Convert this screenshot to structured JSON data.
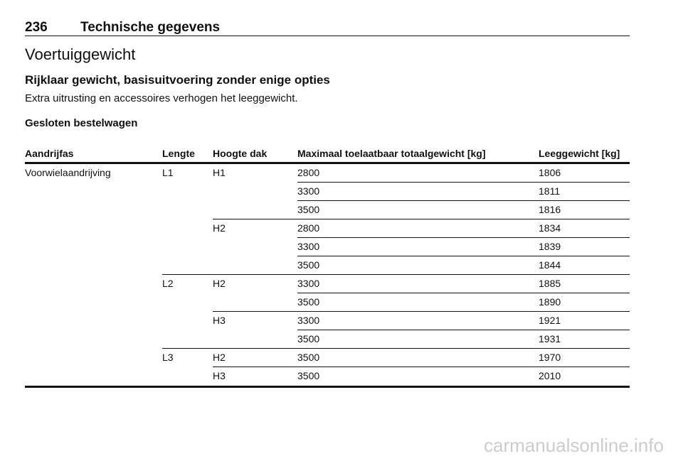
{
  "header": {
    "page_number": "236",
    "section": "Technische gegevens"
  },
  "title": "Voertuiggewicht",
  "subtitle": "Rijklaar gewicht, basisuitvoering zonder enige opties",
  "note": "Extra uitrusting en accessoires verhogen het leeggewicht.",
  "table_title": "Gesloten bestelwagen",
  "table": {
    "header": [
      "Aandrijfas",
      "Lengte",
      "Hoogte dak",
      "Maximaal toelaatbaar totaalgewicht [kg]",
      "Leeggewicht [kg]"
    ],
    "drive": "Voorwielaandrijving",
    "lengths": [
      {
        "length": "L1",
        "heights": [
          {
            "height": "H1",
            "rows": [
              [
                "2800",
                "1806"
              ],
              [
                "3300",
                "1811"
              ],
              [
                "3500",
                "1816"
              ]
            ]
          },
          {
            "height": "H2",
            "rows": [
              [
                "2800",
                "1834"
              ],
              [
                "3300",
                "1839"
              ],
              [
                "3500",
                "1844"
              ]
            ]
          }
        ]
      },
      {
        "length": "L2",
        "heights": [
          {
            "height": "H2",
            "rows": [
              [
                "3300",
                "1885"
              ],
              [
                "3500",
                "1890"
              ]
            ]
          },
          {
            "height": "H3",
            "rows": [
              [
                "3300",
                "1921"
              ],
              [
                "3500",
                "1931"
              ]
            ]
          }
        ]
      },
      {
        "length": "L3",
        "heights": [
          {
            "height": "H2",
            "rows": [
              [
                "3500",
                "1970"
              ]
            ]
          },
          {
            "height": "H3",
            "rows": [
              [
                "3500",
                "2010"
              ]
            ]
          }
        ]
      }
    ]
  },
  "footer": "carmanualsonline.info"
}
